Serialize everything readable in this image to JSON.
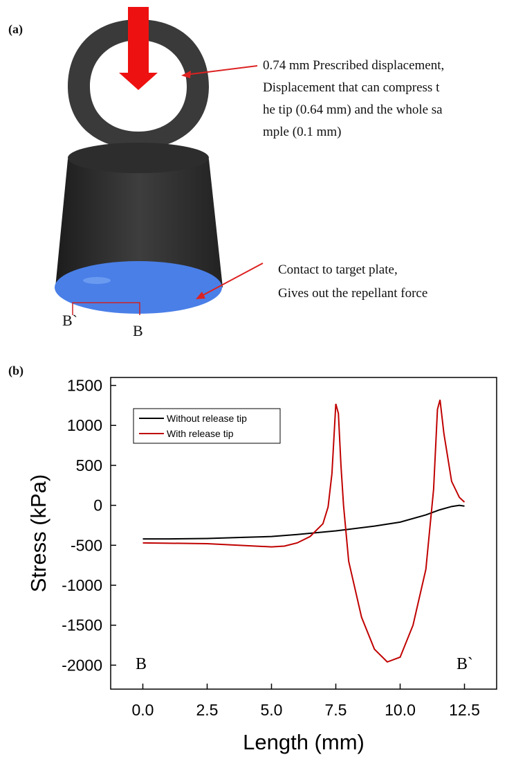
{
  "panel_a": {
    "label": "(a)",
    "annotations": [
      [
        "0.74 mm Prescribed displacement,",
        "Displacement that can compress t",
        "he tip (0.64 mm) and the whole sa",
        "mple (0.1 mm)"
      ],
      [
        "Contact to target plate,",
        "Gives out the repellant force"
      ]
    ],
    "markers": [
      "B`",
      "B"
    ]
  },
  "panel_b": {
    "label": "(b)"
  },
  "chart_data": {
    "type": "line",
    "xlabel": "Length (mm)",
    "ylabel": "Stress (kPa)",
    "xlim": [
      -1.25,
      13.75
    ],
    "ylim": [
      -2300,
      1600
    ],
    "xticks": [
      {
        "value": 0,
        "label": "0.0"
      },
      2.5,
      {
        "value": 5,
        "label": "5.0"
      },
      7.5,
      {
        "value": 10,
        "label": "10.0"
      },
      12.5
    ],
    "yticks": [
      -2000,
      -1500,
      -1000,
      -500,
      0,
      500,
      1000,
      1500
    ],
    "annotations": [
      "B",
      "B`"
    ],
    "legend": "upper left",
    "series": [
      {
        "name": "Without release tip",
        "color": "#000000",
        "x": [
          0,
          1,
          2.5,
          4,
          5,
          6,
          7,
          7.5,
          8,
          9,
          10,
          11,
          11.5,
          12,
          12.3,
          12.5
        ],
        "values": [
          -420,
          -420,
          -415,
          -400,
          -390,
          -365,
          -335,
          -320,
          -300,
          -260,
          -210,
          -120,
          -60,
          -15,
          0,
          -10
        ]
      },
      {
        "name": "With release tip",
        "color": "#c00000",
        "x": [
          0,
          2.5,
          5,
          5.5,
          6,
          6.5,
          7,
          7.2,
          7.35,
          7.5,
          7.6,
          7.7,
          7.8,
          8,
          8.5,
          9,
          9.5,
          10,
          10.5,
          11,
          11.3,
          11.45,
          11.55,
          11.7,
          12,
          12.3,
          12.5
        ],
        "values": [
          -470,
          -480,
          -520,
          -510,
          -470,
          -390,
          -230,
          -20,
          400,
          1270,
          1150,
          500,
          0,
          -700,
          -1400,
          -1800,
          -1960,
          -1900,
          -1500,
          -800,
          200,
          1200,
          1320,
          900,
          300,
          100,
          40
        ]
      }
    ]
  }
}
